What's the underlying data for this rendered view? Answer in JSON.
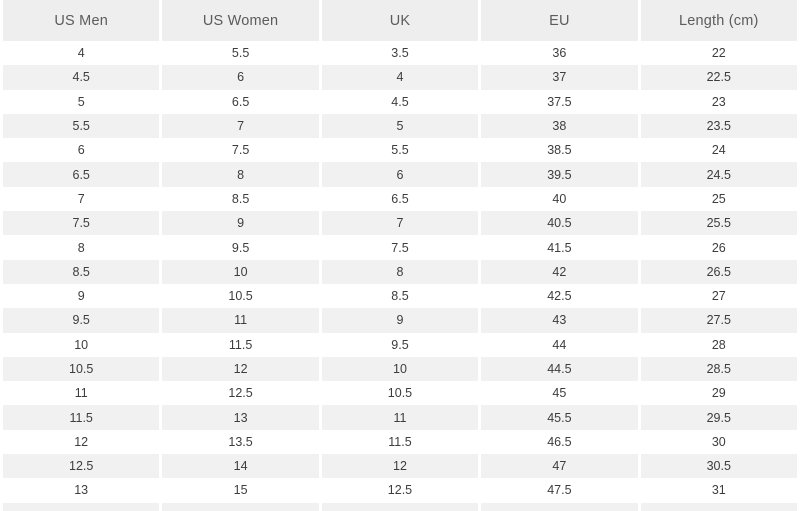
{
  "chart_data": {
    "type": "table",
    "columns": [
      "US Men",
      "US Women",
      "UK",
      "EU",
      "Length (cm)"
    ],
    "rows": [
      [
        "4",
        "5.5",
        "3.5",
        "36",
        "22"
      ],
      [
        "4.5",
        "6",
        "4",
        "37",
        "22.5"
      ],
      [
        "5",
        "6.5",
        "4.5",
        "37.5",
        "23"
      ],
      [
        "5.5",
        "7",
        "5",
        "38",
        "23.5"
      ],
      [
        "6",
        "7.5",
        "5.5",
        "38.5",
        "24"
      ],
      [
        "6.5",
        "8",
        "6",
        "39.5",
        "24.5"
      ],
      [
        "7",
        "8.5",
        "6.5",
        "40",
        "25"
      ],
      [
        "7.5",
        "9",
        "7",
        "40.5",
        "25.5"
      ],
      [
        "8",
        "9.5",
        "7.5",
        "41.5",
        "26"
      ],
      [
        "8.5",
        "10",
        "8",
        "42",
        "26.5"
      ],
      [
        "9",
        "10.5",
        "8.5",
        "42.5",
        "27"
      ],
      [
        "9.5",
        "11",
        "9",
        "43",
        "27.5"
      ],
      [
        "10",
        "11.5",
        "9.5",
        "44",
        "28"
      ],
      [
        "10.5",
        "12",
        "10",
        "44.5",
        "28.5"
      ],
      [
        "11",
        "12.5",
        "10.5",
        "45",
        "29"
      ],
      [
        "11.5",
        "13",
        "11",
        "45.5",
        "29.5"
      ],
      [
        "12",
        "13.5",
        "11.5",
        "46.5",
        "30"
      ],
      [
        "12.5",
        "14",
        "12",
        "47",
        "30.5"
      ],
      [
        "13",
        "15",
        "12.5",
        "47.5",
        "31"
      ]
    ],
    "layout": {
      "header_row": true,
      "alternating_row_shading": true,
      "partial_clipped_row_at_bottom": true,
      "grid": "white gutters between columns"
    }
  },
  "colors": {
    "header_bg": "#eeeeee",
    "row_alt_bg": "#f1f1f1",
    "row_bg": "#ffffff",
    "header_text": "#5c5c5c",
    "cell_text": "#3d3d3d",
    "divider": "#ffffff"
  }
}
